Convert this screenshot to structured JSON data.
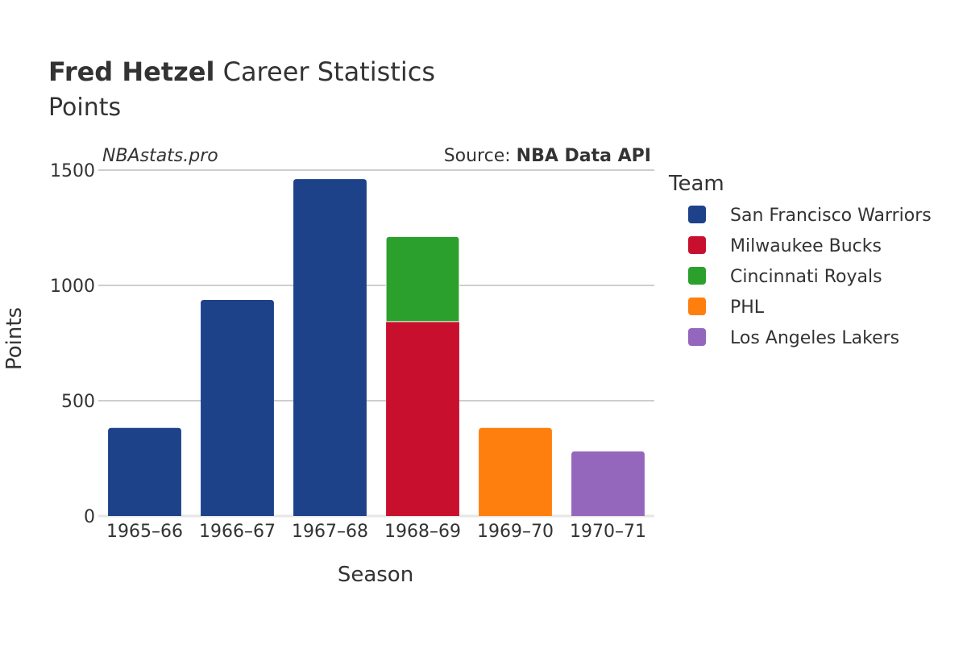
{
  "header": {
    "title_bold": "Fred Hetzel",
    "title_rest": " Career Statistics",
    "subtitle": "Points"
  },
  "watermark": "NBAstats.pro",
  "source": {
    "prefix": "Source: ",
    "name": "NBA Data API"
  },
  "colors": {
    "San Francisco Warriors": "#1d428a",
    "Milwaukee Bucks": "#c8102e",
    "Cincinnati Royals": "#2ca02c",
    "PHL": "#ff7f0e",
    "Los Angeles Lakers": "#9467bd",
    "grid": "#b0b0b0",
    "text": "#333333"
  },
  "legend": {
    "title": "Team",
    "items": [
      "San Francisco Warriors",
      "Milwaukee Bucks",
      "Cincinnati Royals",
      "PHL",
      "Los Angeles Lakers"
    ]
  },
  "chart_data": {
    "type": "bar",
    "stacked": true,
    "title": "Fred Hetzel Career Statistics",
    "subtitle": "Points",
    "xlabel": "Season",
    "ylabel": "Points",
    "ylim": [
      0,
      1500
    ],
    "yticks": [
      0,
      500,
      1000,
      1500
    ],
    "grid": true,
    "legend_position": "right",
    "categories": [
      "1965–66",
      "1966–67",
      "1967–68",
      "1968–69",
      "1969–70",
      "1970–71"
    ],
    "series": [
      {
        "name": "San Francisco Warriors",
        "values": [
          382,
          937,
          1461,
          0,
          0,
          0
        ]
      },
      {
        "name": "Milwaukee Bucks",
        "values": [
          0,
          0,
          0,
          843,
          0,
          0
        ]
      },
      {
        "name": "Cincinnati Royals",
        "values": [
          0,
          0,
          0,
          369,
          0,
          0
        ]
      },
      {
        "name": "PHL",
        "values": [
          0,
          0,
          0,
          0,
          382,
          0
        ]
      },
      {
        "name": "Los Angeles Lakers",
        "values": [
          0,
          0,
          0,
          0,
          0,
          280
        ]
      }
    ]
  }
}
